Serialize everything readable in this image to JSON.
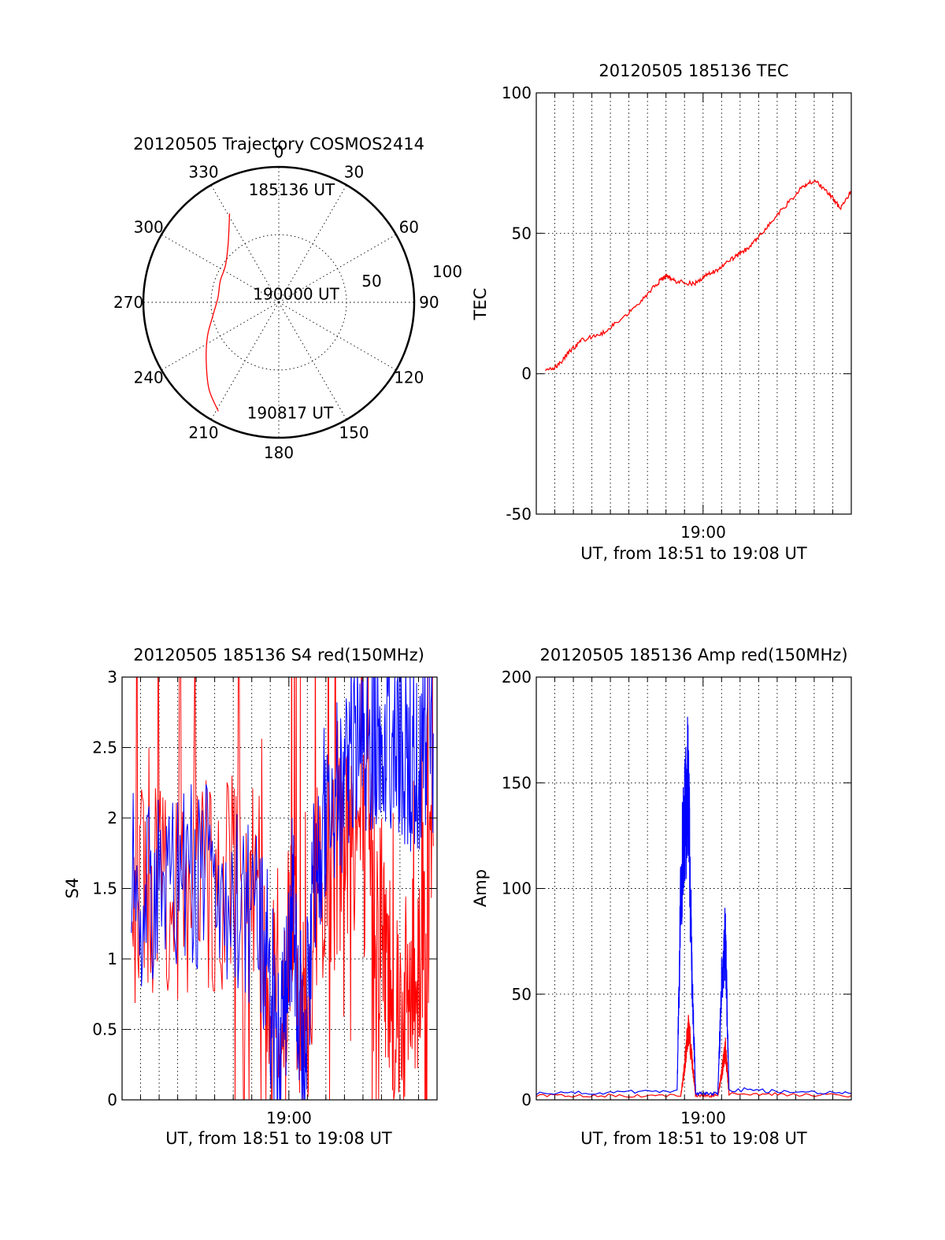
{
  "chart_data": [
    {
      "type": "polar",
      "title": "20120505 Trajectory COSMOS2414",
      "angle_labels": [
        "0",
        "30",
        "60",
        "90",
        "120",
        "150",
        "180",
        "210",
        "240",
        "270",
        "300",
        "330"
      ],
      "angles": [
        0,
        30,
        60,
        90,
        120,
        150,
        180,
        210,
        240,
        270,
        300,
        330
      ],
      "radial_labels": [
        "50",
        "100"
      ],
      "rlim": [
        0,
        100
      ],
      "grid": true,
      "series": [
        {
          "color": "#ff0000",
          "points_az_r": [
            [
              331,
              75
            ],
            [
              320,
              58
            ],
            [
              305,
              48
            ],
            [
              290,
              46
            ],
            [
              275,
              45
            ],
            [
              260,
              49
            ],
            [
              245,
              58
            ],
            [
              232,
              68
            ],
            [
              219,
              82
            ],
            [
              209,
              92
            ]
          ]
        }
      ],
      "annotations": [
        {
          "text": "185136 UT",
          "az": 345,
          "r": 86
        },
        {
          "text": "190000 UT",
          "az": 288,
          "r": 20
        },
        {
          "text": "190817 UT",
          "az": 196,
          "r": 85
        }
      ]
    },
    {
      "type": "line",
      "title": "20120505 185136 TEC",
      "ylabel": "TEC",
      "xlabel": "UT, from 18:51 to 19:08 UT",
      "xtick_label": "19:00",
      "ylim": [
        -50,
        100
      ],
      "yticks": [
        "100",
        "50",
        "0",
        "-50"
      ],
      "xlim_minutes": [
        0,
        17
      ],
      "grid": true,
      "series": [
        {
          "color": "#ff0000",
          "x_minutes": [
            0.5,
            1.2,
            1.8,
            2.5,
            3.5,
            4.5,
            5.5,
            6.5,
            7.0,
            7.5,
            8.5,
            9.2,
            10.0,
            10.8,
            11.5,
            12.3,
            13.2,
            14.3,
            15.0,
            15.8,
            16.4,
            17.0
          ],
          "values": [
            1,
            3,
            8,
            12,
            14,
            19,
            25,
            32,
            35,
            33,
            32,
            35,
            38,
            42,
            45,
            51,
            58,
            66,
            69,
            64,
            59,
            65
          ]
        }
      ]
    },
    {
      "type": "line",
      "title": "20120505 185136 S4 red(150MHz)",
      "ylabel": "S4",
      "xlabel": "UT, from 18:51 to 19:08 UT",
      "xtick_label": "19:00",
      "ylim": [
        0,
        3
      ],
      "yticks": [
        "3",
        "2.5",
        "2",
        "1.5",
        "1",
        "0.5",
        "0"
      ],
      "xlim_minutes": [
        0,
        17
      ],
      "grid": true,
      "series": [
        {
          "color": "#ff0000",
          "x_minutes": [
            0.5,
            2,
            4,
            6,
            7.5,
            8.5,
            9.2,
            9.8,
            10.5,
            11.5,
            12.5,
            13.5,
            14.3,
            15.2,
            16,
            16.8
          ],
          "values": [
            1.5,
            1.4,
            1.5,
            1.6,
            1.4,
            0.3,
            1.2,
            0.2,
            1.5,
            1.6,
            2.0,
            1.6,
            1.0,
            0.6,
            1.0,
            1.8
          ]
        },
        {
          "color": "#0000ff",
          "x_minutes": [
            0.5,
            2,
            4,
            6,
            7.5,
            8.5,
            9.2,
            9.8,
            10.5,
            11.5,
            12.5,
            13.5,
            14.3,
            15.2,
            16,
            16.8
          ],
          "values": [
            1.5,
            1.5,
            1.6,
            1.5,
            1.3,
            0.3,
            1.4,
            0.2,
            1.8,
            2.2,
            2.5,
            2.6,
            2.4,
            2.5,
            2.4,
            2.6
          ]
        }
      ]
    },
    {
      "type": "line",
      "title": "20120505 185136 Amp red(150MHz)",
      "ylabel": "Amp",
      "xlabel": "UT, from 18:51 to 19:08 UT",
      "xtick_label": "19:00",
      "ylim": [
        0,
        200
      ],
      "yticks": [
        "200",
        "150",
        "100",
        "50",
        "0"
      ],
      "xlim_minutes": [
        0,
        17
      ],
      "grid": true,
      "series": [
        {
          "color": "#ff0000",
          "x_minutes": [
            0,
            7.8,
            8.0,
            8.2,
            8.4,
            8.6,
            9.8,
            10.0,
            10.2,
            10.4,
            17
          ],
          "values": [
            2,
            2,
            15,
            35,
            20,
            2,
            2,
            12,
            25,
            3,
            2
          ]
        },
        {
          "color": "#0000ff",
          "x_minutes": [
            0,
            7.6,
            7.8,
            8.0,
            8.2,
            8.4,
            8.6,
            9.8,
            10.0,
            10.2,
            10.4,
            17
          ],
          "values": [
            3,
            4,
            100,
            130,
            150,
            60,
            3,
            3,
            55,
            78,
            5,
            3
          ]
        }
      ]
    }
  ]
}
